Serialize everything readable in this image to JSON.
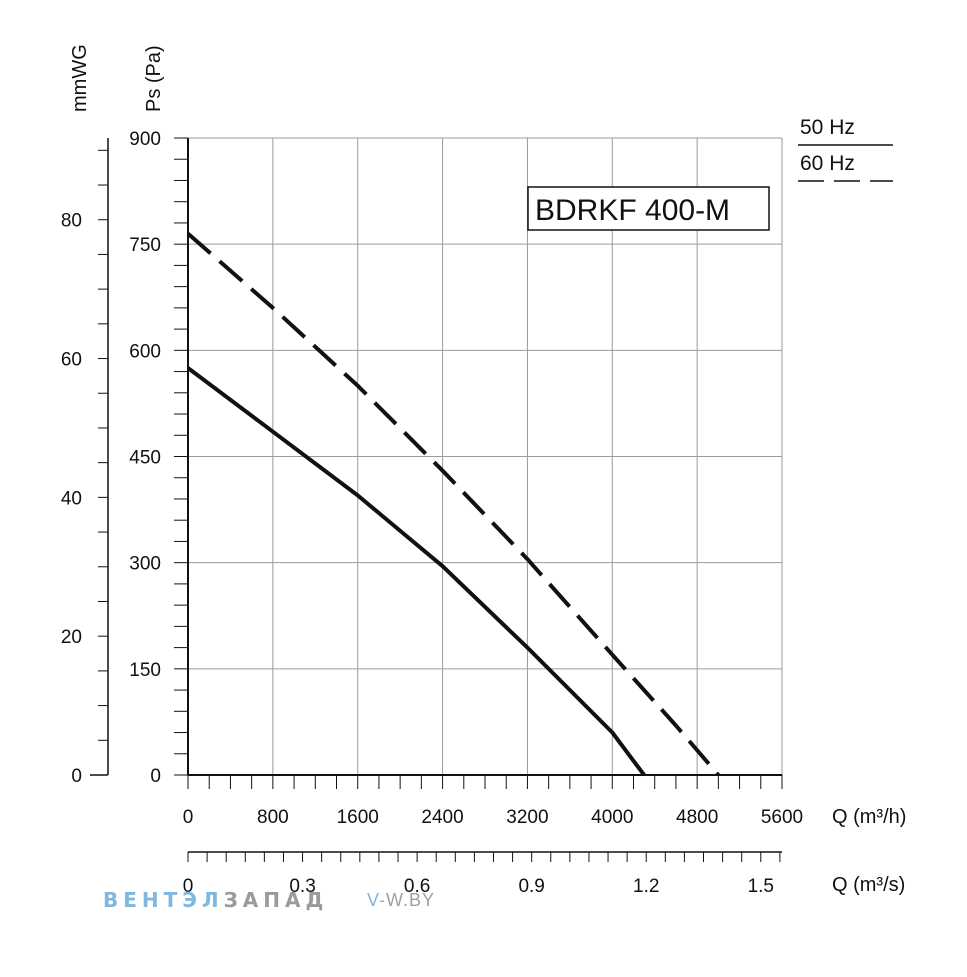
{
  "chart_data": {
    "type": "line",
    "title": "BDRKF 400-M",
    "xlabel": "Q (m³/h)",
    "x2label": "Q (m³/s)",
    "ylabel": "Ps (Pa)",
    "y2label": "mmWG",
    "xlim": [
      0,
      5600
    ],
    "ylim": [
      0,
      900
    ],
    "x_ticks": [
      "0",
      "800",
      "1600",
      "2400",
      "3200",
      "4000",
      "4800",
      "5600"
    ],
    "x2_ticks": [
      "0",
      "0.3",
      "0.6",
      "0.9",
      "1.2",
      "1.5"
    ],
    "y_ticks": [
      "0",
      "150",
      "300",
      "450",
      "600",
      "750",
      "900"
    ],
    "y2_ticks": [
      "0",
      "20",
      "40",
      "60",
      "80"
    ],
    "grid": true,
    "legend_position": "top-right",
    "series": [
      {
        "name": "50 Hz",
        "style": "solid",
        "points": [
          [
            0,
            575
          ],
          [
            800,
            485
          ],
          [
            1600,
            395
          ],
          [
            2400,
            295
          ],
          [
            3200,
            180
          ],
          [
            4000,
            60
          ],
          [
            4300,
            0
          ]
        ]
      },
      {
        "name": "60 Hz",
        "style": "dashed",
        "points": [
          [
            0,
            765
          ],
          [
            800,
            660
          ],
          [
            1600,
            550
          ],
          [
            2400,
            430
          ],
          [
            3200,
            305
          ],
          [
            4000,
            170
          ],
          [
            4600,
            70
          ],
          [
            5000,
            0
          ]
        ]
      }
    ]
  },
  "watermark": {
    "brand_a": "ВЕНТЭЛ",
    "brand_b": "ЗАПАД",
    "site_a": "V-",
    "site_b": "W.BY"
  },
  "colors": {
    "grid": "#9a9a9a",
    "axis": "#111111",
    "brand": "#7fb7e0"
  }
}
